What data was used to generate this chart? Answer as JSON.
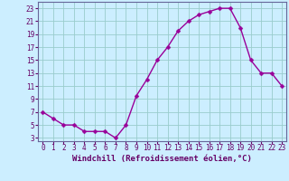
{
  "x": [
    0,
    1,
    2,
    3,
    4,
    5,
    6,
    7,
    8,
    9,
    10,
    11,
    12,
    13,
    14,
    15,
    16,
    17,
    18,
    19,
    20,
    21,
    22,
    23
  ],
  "y": [
    7,
    6,
    5,
    5,
    4,
    4,
    4,
    3,
    5,
    9.5,
    12,
    15,
    17,
    19.5,
    21,
    22,
    22.5,
    23,
    23,
    20,
    15,
    13,
    13,
    11
  ],
  "line_color": "#990099",
  "marker_color": "#990099",
  "bg_color": "#cceeff",
  "grid_color": "#99cccc",
  "axis_label_color": "#660066",
  "tick_color": "#660066",
  "border_color": "#666699",
  "xlabel": "Windchill (Refroidissement éolien,°C)",
  "xlim_min": -0.5,
  "xlim_max": 23.4,
  "ylim_min": 2.5,
  "ylim_max": 24.0,
  "yticks": [
    3,
    5,
    7,
    9,
    11,
    13,
    15,
    17,
    19,
    21,
    23
  ],
  "xticks": [
    0,
    1,
    2,
    3,
    4,
    5,
    6,
    7,
    8,
    9,
    10,
    11,
    12,
    13,
    14,
    15,
    16,
    17,
    18,
    19,
    20,
    21,
    22,
    23
  ],
  "xlabel_fontsize": 6.5,
  "tick_fontsize": 5.5,
  "marker_size": 2.5,
  "line_width": 1.0
}
